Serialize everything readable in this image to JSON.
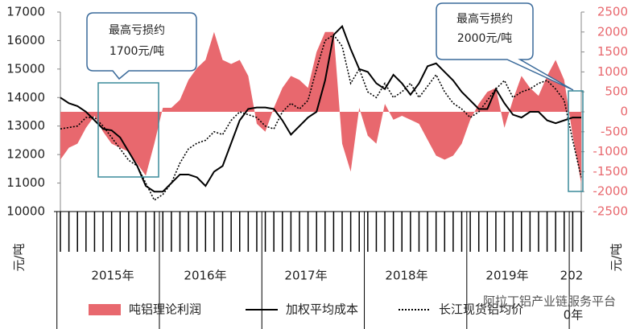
{
  "chart_data": {
    "type": "line",
    "categories": [
      null,
      null,
      null,
      null,
      null,
      null,
      null,
      null,
      null,
      null,
      null,
      null,
      null,
      null,
      null,
      null,
      null,
      null,
      null,
      null,
      null,
      null,
      null,
      null,
      null,
      null,
      null,
      null,
      null,
      null,
      null,
      null,
      null,
      null,
      null,
      null,
      null,
      null,
      null,
      null,
      null,
      null,
      null,
      null,
      null,
      null,
      null,
      null,
      null,
      null,
      null,
      null,
      null,
      null,
      null,
      null,
      null,
      null,
      null,
      null,
      null,
      null
    ],
    "year_labels": [
      "2015年",
      "2016年",
      "2017年",
      "2018年",
      "2019年",
      "202",
      "0年"
    ],
    "ylim": [
      10000,
      17000
    ],
    "yticks": [
      10000,
      11000,
      12000,
      13000,
      14000,
      15000,
      16000,
      17000
    ],
    "y2lim": [
      -2500,
      2500
    ],
    "y2ticks": [
      -2500,
      -2000,
      -1500,
      -1000,
      -500,
      0,
      500,
      1000,
      1500,
      2000,
      2500
    ],
    "ylabel": "元/吨",
    "y2label": "元/吨",
    "series": [
      {
        "name": "吨铝理论利润",
        "color": "#e8686e",
        "axis": "y2",
        "kind": "area",
        "values": [
          -1200,
          -900,
          -800,
          -400,
          -100,
          -500,
          -800,
          -900,
          -1000,
          -1300,
          -1600,
          -800,
          100,
          100,
          300,
          800,
          1100,
          1300,
          2000,
          1300,
          1200,
          1300,
          900,
          -300,
          -500,
          100,
          600,
          900,
          800,
          600,
          1500,
          2000,
          2000,
          -800,
          -1500,
          100,
          -600,
          -800,
          200,
          -200,
          -100,
          -200,
          -300,
          -700,
          -1100,
          -1200,
          -1100,
          -800,
          -200,
          200,
          500,
          600,
          -400,
          300,
          900,
          600,
          400,
          900,
          1300,
          800,
          -600,
          -1800
        ]
      },
      {
        "name": "加权平均成本",
        "color": "#000000",
        "kind": "solid",
        "values": [
          14000,
          13800,
          13700,
          13500,
          13200,
          12900,
          12850,
          12600,
          12100,
          11600,
          10900,
          10700,
          10700,
          11000,
          11300,
          11300,
          11200,
          10900,
          11400,
          11600,
          12400,
          13200,
          13600,
          13650,
          13650,
          13600,
          13200,
          12700,
          13000,
          13300,
          13500,
          14600,
          16200,
          16500,
          15700,
          15000,
          14900,
          14500,
          14300,
          14800,
          14500,
          14100,
          14500,
          15100,
          15200,
          14900,
          14600,
          14200,
          13900,
          13600,
          13600,
          14300,
          13800,
          13400,
          13300,
          13500,
          13500,
          13200,
          13100,
          13200,
          13300,
          13300
        ]
      },
      {
        "name": "长江现货铝均价",
        "color": "#000000",
        "kind": "dotted",
        "values": [
          12900,
          12950,
          13000,
          13300,
          13300,
          13000,
          12600,
          12200,
          11800,
          11600,
          11000,
          10400,
          10600,
          11000,
          11700,
          12200,
          12400,
          12500,
          12800,
          12700,
          13200,
          13500,
          13400,
          13300,
          13000,
          12900,
          13500,
          13800,
          13600,
          13900,
          15000,
          16000,
          16200,
          15800,
          14500,
          15000,
          14200,
          14000,
          14500,
          14000,
          14200,
          14500,
          14000,
          14400,
          14800,
          14200,
          13800,
          13600,
          13300,
          13500,
          13900,
          14300,
          14600,
          14000,
          14200,
          14300,
          14500,
          14600,
          14300,
          13900,
          12500,
          11200
        ]
      }
    ],
    "annotations": [
      [
        "最高亏损约",
        "1700元/吨"
      ],
      [
        "最高亏损约",
        "2000元/吨"
      ]
    ],
    "watermark": "阿拉丁铝产业链服务平台"
  }
}
